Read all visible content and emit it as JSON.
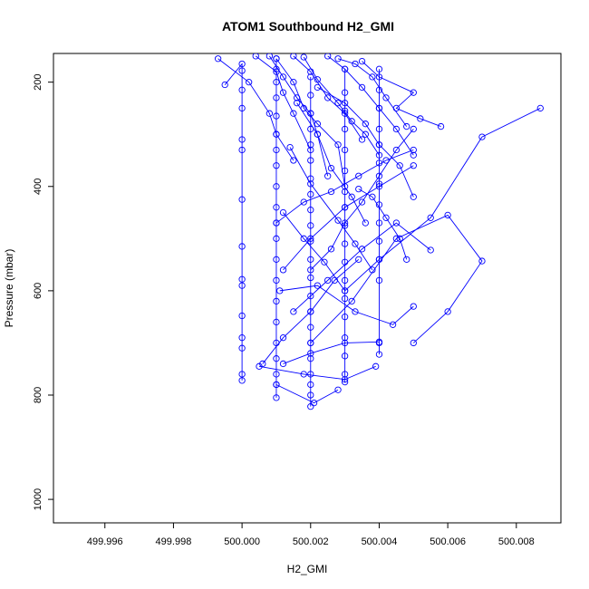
{
  "chart_data": {
    "type": "line",
    "title": "ATOM1 Southbound H2_GMI",
    "xlabel": "H2_GMI",
    "ylabel": "Pressure (mbar)",
    "xlim": [
      499.9945,
      500.0093
    ],
    "ylim": [
      1045,
      145
    ],
    "y_reversed": true,
    "grid": false,
    "legend": "none",
    "color": "#0000ff",
    "marker": "open-circle",
    "x_ticks": [
      499.996,
      499.998,
      500.0,
      500.002,
      500.004,
      500.006,
      500.008
    ],
    "x_tick_labels": [
      "499.996",
      "499.998",
      "500.000",
      "500.002",
      "500.004",
      "500.006",
      "500.008"
    ],
    "y_ticks": [
      200,
      400,
      600,
      800,
      1000
    ],
    "y_tick_labels": [
      "200",
      "400",
      "600",
      "800",
      "1000"
    ],
    "series": [
      {
        "x": [
          499.9995,
          500.0,
          500.0,
          500.0,
          500.0,
          500.0,
          500.0,
          500.0,
          500.0,
          500.0,
          500.0,
          500.0,
          500.0,
          500.0,
          500.0,
          500.0
        ],
        "y": [
          205,
          165,
          178,
          215,
          250,
          310,
          330,
          425,
          515,
          578,
          590,
          648,
          690,
          710,
          760,
          772
        ]
      },
      {
        "x": [
          500.001,
          500.001,
          500.001,
          500.001,
          500.001,
          500.001,
          500.001,
          500.001,
          500.001,
          500.001,
          500.001,
          500.001,
          500.001,
          500.001,
          500.001,
          500.001,
          500.001,
          500.001,
          500.001,
          500.001,
          500.001
        ],
        "y": [
          155,
          175,
          200,
          230,
          265,
          300,
          330,
          360,
          400,
          440,
          470,
          500,
          540,
          580,
          620,
          660,
          700,
          730,
          760,
          780,
          805
        ]
      },
      {
        "x": [
          500.002,
          500.002,
          500.002,
          500.002,
          500.002,
          500.002,
          500.002,
          500.002,
          500.002,
          500.002,
          500.002,
          500.002,
          500.002,
          500.002,
          500.002,
          500.002,
          500.002,
          500.002,
          500.002,
          500.002,
          500.002,
          500.002
        ],
        "y": [
          190,
          225,
          260,
          290,
          320,
          350,
          385,
          415,
          445,
          475,
          505,
          540,
          575,
          610,
          640,
          670,
          700,
          730,
          760,
          780,
          800,
          822
        ]
      },
      {
        "x": [
          500.003,
          500.003,
          500.003,
          500.003,
          500.003,
          500.003,
          500.003,
          500.003,
          500.003,
          500.003,
          500.003,
          500.003,
          500.003,
          500.003,
          500.003,
          500.003,
          500.003,
          500.003
        ],
        "y": [
          175,
          220,
          255,
          290,
          330,
          370,
          410,
          440,
          475,
          510,
          545,
          580,
          615,
          650,
          690,
          725,
          760,
          775
        ]
      },
      {
        "x": [
          500.004,
          500.004,
          500.004,
          500.004,
          500.004,
          500.004,
          500.004,
          500.004,
          500.004,
          500.004,
          500.004,
          500.004,
          500.004,
          500.004
        ],
        "y": [
          175,
          215,
          250,
          290,
          320,
          355,
          395,
          435,
          470,
          505,
          540,
          580,
          700,
          722
        ]
      },
      {
        "x": [
          499.9993,
          500.0002,
          500.0008,
          500.001,
          500.0015
        ],
        "y": [
          155,
          200,
          260,
          300,
          350
        ]
      },
      {
        "x": [
          500.0004,
          500.001,
          500.0012,
          500.0015,
          500.002
        ],
        "y": [
          150,
          180,
          220,
          260,
          330
        ]
      },
      {
        "x": [
          500.0008,
          500.0012,
          500.0016,
          500.002,
          500.0022,
          500.0025
        ],
        "y": [
          150,
          190,
          230,
          260,
          300,
          380
        ]
      },
      {
        "x": [
          500.001,
          500.0015,
          500.0018,
          500.0022,
          500.0028,
          500.003
        ],
        "y": [
          155,
          200,
          250,
          280,
          320,
          400
        ]
      },
      {
        "x": [
          500.0015,
          500.002,
          500.0025,
          500.003,
          500.0035
        ],
        "y": [
          150,
          180,
          230,
          260,
          310
        ]
      },
      {
        "x": [
          500.0018,
          500.0022,
          500.0028,
          500.0032,
          500.0036,
          500.004
        ],
        "y": [
          152,
          195,
          240,
          275,
          300,
          340
        ]
      },
      {
        "x": [
          500.0025,
          500.003,
          500.0035,
          500.004,
          500.0045,
          500.005
        ],
        "y": [
          150,
          175,
          210,
          250,
          290,
          340
        ]
      },
      {
        "x": [
          500.0028,
          500.0033,
          500.0038,
          500.0042,
          500.0048
        ],
        "y": [
          155,
          165,
          190,
          230,
          285
        ]
      },
      {
        "x": [
          500.0035,
          500.004,
          500.005,
          500.0045,
          500.0052,
          500.0058
        ],
        "y": [
          160,
          190,
          220,
          250,
          270,
          285
        ]
      },
      {
        "x": [
          500.002,
          500.0026,
          500.003,
          500.0035,
          500.004,
          500.0045,
          500.005
        ],
        "y": [
          560,
          520,
          470,
          430,
          380,
          330,
          290
        ]
      },
      {
        "x": [
          500.003,
          500.004,
          500.0055,
          500.007,
          500.0087
        ],
        "y": [
          600,
          540,
          460,
          305,
          250
        ]
      },
      {
        "x": [
          500.002,
          500.0032,
          500.0045,
          500.006,
          500.007,
          500.006,
          500.005
        ],
        "y": [
          700,
          620,
          500,
          455,
          543,
          640,
          700
        ]
      },
      {
        "x": [
          500.0015,
          500.0025,
          500.0035,
          500.0045,
          500.0055
        ],
        "y": [
          640,
          580,
          520,
          470,
          522
        ]
      },
      {
        "x": [
          500.0012,
          500.002,
          500.003,
          500.004,
          500.005
        ],
        "y": [
          560,
          500,
          440,
          400,
          360
        ]
      },
      {
        "x": [
          500.001,
          500.0018,
          500.0026,
          500.0034,
          500.0042,
          500.005
        ],
        "y": [
          470,
          430,
          410,
          380,
          350,
          330
        ]
      },
      {
        "x": [
          500.0006,
          500.0012,
          500.002,
          500.0027,
          500.0034
        ],
        "y": [
          740,
          690,
          640,
          580,
          540
        ]
      },
      {
        "x": [
          500.0011,
          500.0022,
          500.0033,
          500.0044,
          500.005
        ],
        "y": [
          600,
          590,
          640,
          665,
          630
        ]
      },
      {
        "x": [
          500.0012,
          500.002,
          500.003,
          500.004
        ],
        "y": [
          740,
          720,
          700,
          698
        ]
      },
      {
        "x": [
          500.0005,
          500.0018,
          500.003,
          500.0039
        ],
        "y": [
          745,
          760,
          770,
          745
        ]
      },
      {
        "x": [
          500.001,
          500.0021,
          500.0028
        ],
        "y": [
          780,
          815,
          790
        ]
      },
      {
        "x": [
          500.0012,
          500.0018,
          500.0024,
          500.003
        ],
        "y": [
          450,
          500,
          545,
          600
        ]
      },
      {
        "x": [
          500.0014,
          500.002,
          500.0028,
          500.0033,
          500.0038
        ],
        "y": [
          325,
          395,
          465,
          510,
          560
        ]
      },
      {
        "x": [
          500.0016,
          500.0022,
          500.0026,
          500.0032,
          500.0036
        ],
        "y": [
          240,
          300,
          365,
          420,
          470
        ]
      },
      {
        "x": [
          500.0034,
          500.0038,
          500.0042,
          500.0046,
          500.0048
        ],
        "y": [
          405,
          420,
          460,
          500,
          540
        ]
      },
      {
        "x": [
          500.0022,
          500.003,
          500.0036,
          500.004,
          500.0046,
          500.005
        ],
        "y": [
          210,
          240,
          280,
          320,
          360,
          420
        ]
      }
    ]
  }
}
